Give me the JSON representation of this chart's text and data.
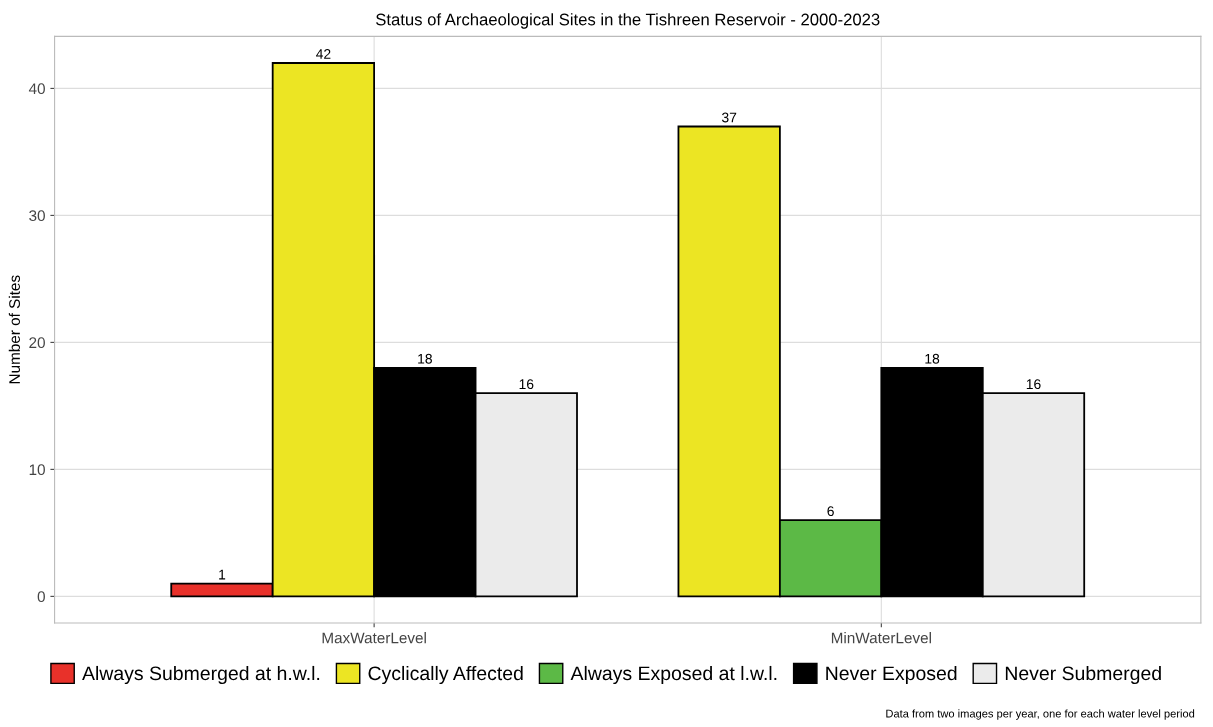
{
  "chart_data": {
    "type": "bar",
    "title": "Status of Archaeological Sites in the Tishreen Reservoir - 2000-2023",
    "ylabel": "Number of Sites",
    "categories": [
      "MaxWaterLevel",
      "MinWaterLevel"
    ],
    "series": [
      {
        "name": "Always Submerged at h.w.l.",
        "color": "#e8312a",
        "values": [
          1,
          null
        ]
      },
      {
        "name": "Cyclically Affected",
        "color": "#ece523",
        "values": [
          42,
          37
        ]
      },
      {
        "name": "Always Exposed at l.w.l.",
        "color": "#5cb946",
        "values": [
          null,
          6
        ]
      },
      {
        "name": "Never Exposed",
        "color": "#000000",
        "values": [
          18,
          18
        ]
      },
      {
        "name": "Never Submerged",
        "color": "#ebebeb",
        "values": [
          16,
          16
        ]
      }
    ],
    "ylim": [
      -2.1,
      44.1
    ],
    "yticks": [
      0,
      10,
      20,
      30,
      40
    ],
    "grid": true,
    "legend": "bottom",
    "data_labels": true,
    "annotations": [
      "Data from two images per year, one for each water level period"
    ]
  }
}
